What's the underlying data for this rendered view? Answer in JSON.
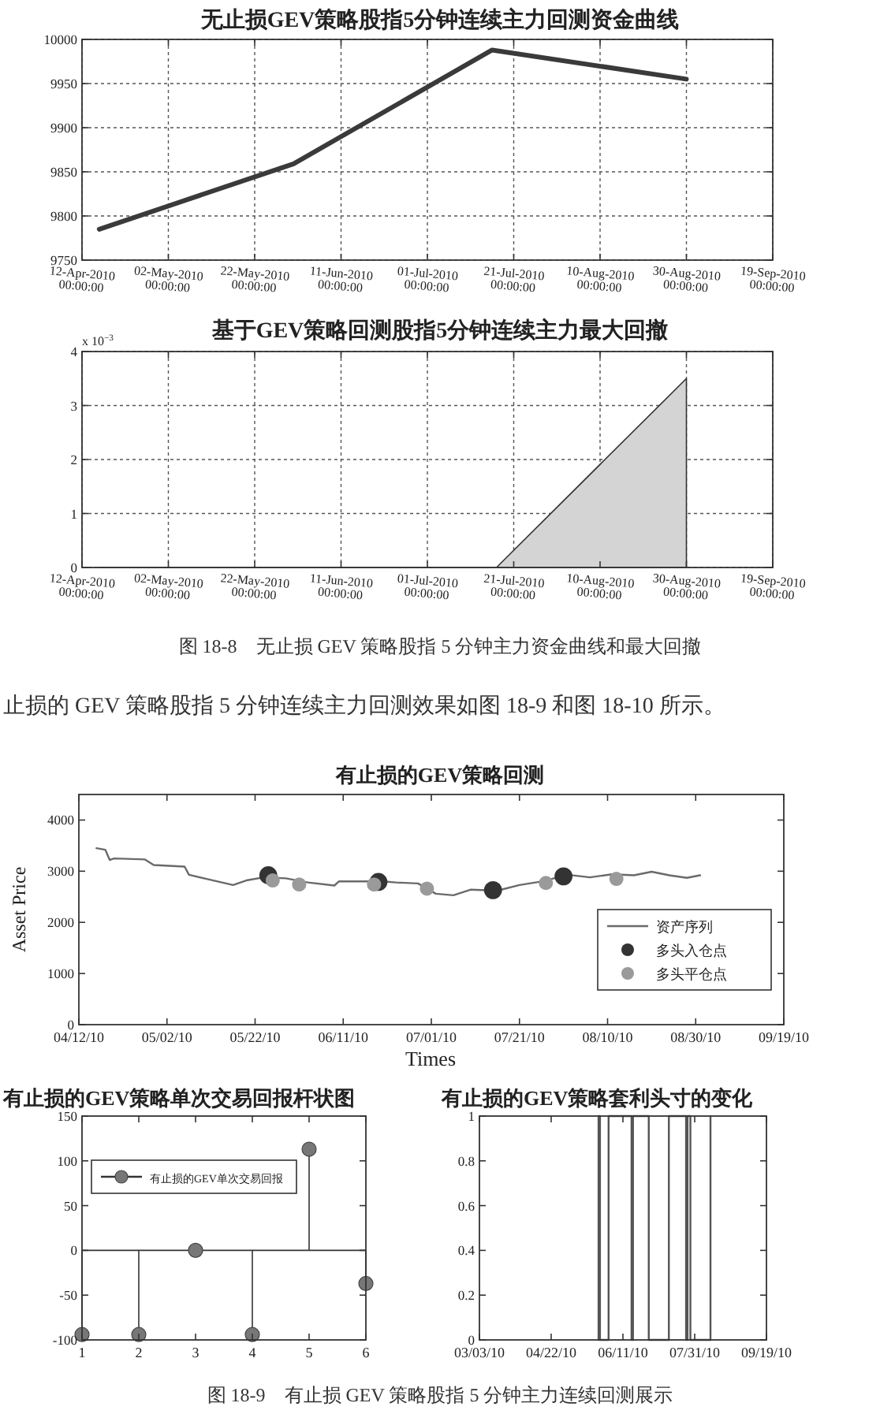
{
  "chart_data": [
    {
      "type": "line",
      "title": "无止损GEV策略股指5分钟连续主力回测资金曲线",
      "x": [
        "2010-04-16",
        "2010-05-31",
        "2010-07-16",
        "2010-08-30"
      ],
      "values": [
        9785,
        9859,
        9988,
        9955
      ],
      "color": "#3a3a3a",
      "line_style": "solid",
      "grid": true,
      "xlim": [
        "2010-04-12",
        "2010-09-19"
      ],
      "xticks": [
        {
          "value": "2010-04-12",
          "label": "12-Apr-2010 00:00:00"
        },
        {
          "value": "2010-05-02",
          "label": "02-May-2010 00:00:00"
        },
        {
          "value": "2010-05-22",
          "label": "22-May-2010 00:00:00"
        },
        {
          "value": "2010-06-11",
          "label": "11-Jun-2010 00:00:00"
        },
        {
          "value": "2010-07-01",
          "label": "01-Jul-2010 00:00:00"
        },
        {
          "value": "2010-07-21",
          "label": "21-Jul-2010 00:00:00"
        },
        {
          "value": "2010-08-10",
          "label": "10-Aug-2010 00:00:00"
        },
        {
          "value": "2010-08-30",
          "label": "30-Aug-2010 00:00:00"
        },
        {
          "value": "2010-09-19",
          "label": "19-Sep-2010 00:00:00"
        }
      ],
      "ylim": [
        9750,
        10000
      ],
      "yticks": [
        9750,
        9800,
        9850,
        9900,
        9950,
        10000
      ]
    },
    {
      "type": "area",
      "title": "基于GEV策略回测股指5分钟连续主力最大回撤",
      "x": [
        "2010-04-16",
        "2010-07-17",
        "2010-08-30"
      ],
      "values": [
        0,
        0,
        3.5
      ],
      "color": "#d4d4d4",
      "grid": true,
      "xlim": [
        "2010-04-12",
        "2010-09-19"
      ],
      "xticks": [
        {
          "value": "2010-04-12",
          "label": "12-Apr-2010 00:00:00"
        },
        {
          "value": "2010-05-02",
          "label": "02-May-2010 00:00:00"
        },
        {
          "value": "2010-05-22",
          "label": "22-May-2010 00:00:00"
        },
        {
          "value": "2010-06-11",
          "label": "11-Jun-2010 00:00:00"
        },
        {
          "value": "2010-07-01",
          "label": "01-Jul-2010 00:00:00"
        },
        {
          "value": "2010-07-21",
          "label": "21-Jul-2010 00:00:00"
        },
        {
          "value": "2010-08-10",
          "label": "10-Aug-2010 00:00:00"
        },
        {
          "value": "2010-08-30",
          "label": "30-Aug-2010 00:00:00"
        },
        {
          "value": "2010-09-19",
          "label": "19-Sep-2010 00:00:00"
        }
      ],
      "ylim": [
        0,
        4
      ],
      "yticks": [
        0,
        1,
        2,
        3,
        4
      ],
      "annotations": [
        "x 10$^{−3}$",
        "图 18-8　无止损 GEV 策略股指 5 分钟主力资金曲线和最大回撤",
        "止损的 GEV 策略股指 5 分钟连续主力回测效果如图 18-9 和图 18-10 所示。"
      ]
    },
    {
      "type": "line",
      "title": "有止损的GEV策略回测",
      "xlabel": "Times",
      "ylabel": "Asset Price",
      "legend": "right",
      "line_style": "solid",
      "xlim": [
        "2010-04-12",
        "2010-09-19"
      ],
      "xticks": [
        {
          "value": "2010-04-12",
          "label": "04/12/10"
        },
        {
          "value": "2010-05-02",
          "label": "05/02/10"
        },
        {
          "value": "2010-05-22",
          "label": "05/22/10"
        },
        {
          "value": "2010-06-11",
          "label": "06/11/10"
        },
        {
          "value": "2010-07-01",
          "label": "07/01/10"
        },
        {
          "value": "2010-07-21",
          "label": "07/21/10"
        },
        {
          "value": "2010-08-10",
          "label": "08/10/10"
        },
        {
          "value": "2010-08-30",
          "label": "08/30/10"
        },
        {
          "value": "2010-09-19",
          "label": "09/19/10"
        }
      ],
      "ylim": [
        0,
        4500
      ],
      "yticks": [
        0,
        1000,
        2000,
        3000,
        4000
      ],
      "series": [
        {
          "name": "资产序列",
          "color": "#6a6a6a",
          "x": [
            "2010-04-16",
            "2010-04-18",
            "2010-04-19",
            "2010-04-20",
            "2010-04-27",
            "2010-04-29",
            "2010-05-06",
            "2010-05-07",
            "2010-05-11",
            "2010-05-17",
            "2010-05-20",
            "2010-05-24",
            "2010-05-29",
            "2010-06-03",
            "2010-06-09",
            "2010-06-10",
            "2010-06-20",
            "2010-06-23",
            "2010-06-28",
            "2010-07-02",
            "2010-07-06",
            "2010-07-10",
            "2010-07-16",
            "2010-07-21",
            "2010-07-26",
            "2010-08-01",
            "2010-08-06",
            "2010-08-11",
            "2010-08-16",
            "2010-08-20",
            "2010-08-24",
            "2010-08-28",
            "2010-08-31"
          ],
          "values": [
            3450,
            3420,
            3220,
            3250,
            3230,
            3120,
            3090,
            2930,
            2850,
            2730,
            2820,
            2880,
            2860,
            2780,
            2720,
            2800,
            2800,
            2780,
            2760,
            2560,
            2530,
            2640,
            2620,
            2730,
            2800,
            2930,
            2880,
            2940,
            2920,
            2990,
            2920,
            2870,
            2920
          ]
        },
        {
          "type": "scatter",
          "name": "多头入仓点",
          "color": "#333333",
          "marker": "circle",
          "x": [
            "2010-05-25",
            "2010-06-19",
            "2010-07-15",
            "2010-07-31"
          ],
          "values": [
            2920,
            2790,
            2630,
            2900
          ]
        },
        {
          "type": "scatter",
          "name": "多头平仓点",
          "color": "#9a9a9a",
          "marker": "circle",
          "x": [
            "2010-05-26",
            "2010-06-01",
            "2010-06-18",
            "2010-06-30",
            "2010-07-27",
            "2010-08-12"
          ],
          "values": [
            2820,
            2740,
            2740,
            2660,
            2770,
            2850
          ]
        }
      ]
    },
    {
      "type": "lollipop",
      "title": "有止损的GEV策略单次交易回报杆状图",
      "legend": "top left",
      "marker": "circle",
      "x": [
        1,
        2,
        3,
        4,
        5,
        6
      ],
      "xlim": [
        1,
        6
      ],
      "xticks": [
        1,
        2,
        3,
        4,
        5,
        6
      ],
      "ylim": [
        -100,
        150
      ],
      "yticks": [
        -100,
        -50,
        0,
        50,
        100,
        150
      ],
      "series": [
        {
          "name": "有止损的GEV单次交易回报",
          "color": "#777777",
          "values": [
            -94,
            -94,
            0,
            -94,
            113,
            -37
          ]
        }
      ]
    },
    {
      "type": "line",
      "title": "有止损的GEV策略套利头寸的变化",
      "color": "#555555",
      "x": [
        "2010-05-25",
        "2010-05-25",
        "2010-05-26",
        "2010-05-26",
        "2010-06-01",
        "2010-06-01",
        "2010-06-17",
        "2010-06-17",
        "2010-06-18",
        "2010-06-18",
        "2010-06-29",
        "2010-06-29",
        "2010-07-13",
        "2010-07-13",
        "2010-07-25",
        "2010-07-25",
        "2010-07-26",
        "2010-07-26",
        "2010-07-28",
        "2010-07-28",
        "2010-08-11",
        "2010-08-11"
      ],
      "values": [
        0,
        1,
        1,
        0,
        0,
        1,
        1,
        0,
        0,
        1,
        1,
        0,
        0,
        1,
        1,
        0,
        0,
        1,
        1,
        0,
        0,
        1
      ],
      "xlim": [
        "2010-03-03",
        "2010-09-19"
      ],
      "xticks": [
        {
          "value": "2010-03-03",
          "label": "03/03/10"
        },
        {
          "value": "2010-04-22",
          "label": "04/22/10"
        },
        {
          "value": "2010-06-11",
          "label": "06/11/10"
        },
        {
          "value": "2010-07-31",
          "label": "07/31/10"
        },
        {
          "value": "2010-09-19",
          "label": "09/19/10"
        }
      ],
      "ylim": [
        0,
        1
      ],
      "yticks": [
        0,
        0.2,
        0.4,
        0.6,
        0.8,
        1
      ],
      "annotations": [
        "图 18-9　有止损 GEV 策略股指 5 分钟主力连续回测展示"
      ]
    }
  ]
}
